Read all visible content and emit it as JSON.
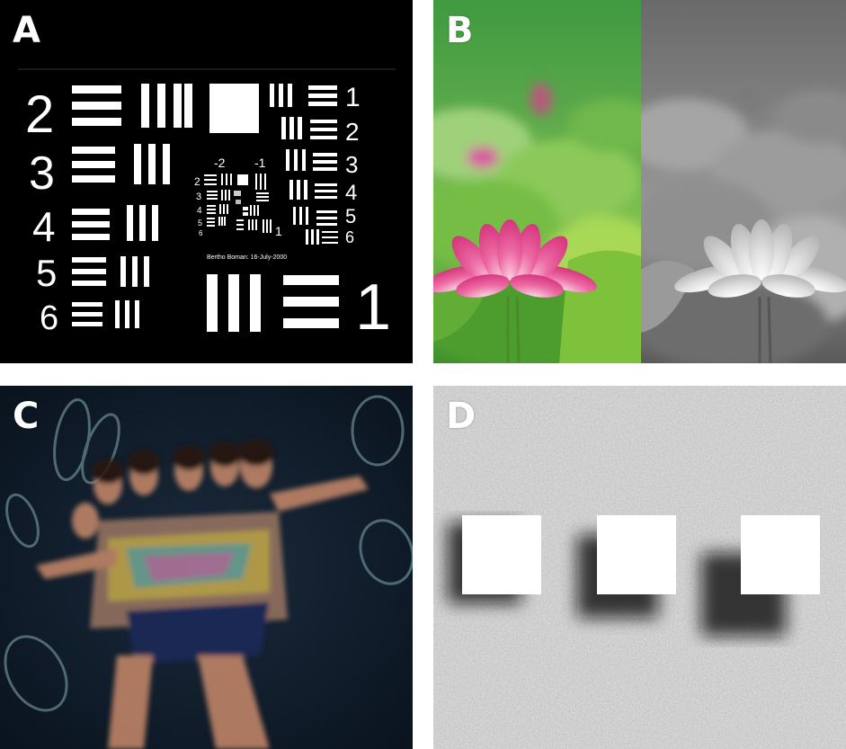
{
  "panels": {
    "a": {
      "label": "A",
      "big_numbers_left": [
        "2",
        "3",
        "4",
        "5",
        "6"
      ],
      "numbers_right": [
        "1",
        "2",
        "3",
        "4",
        "5",
        "6"
      ],
      "inner_group_labels": [
        "-2",
        "-1"
      ],
      "inner_left_numbers": [
        "2",
        "3",
        "4",
        "5",
        "6"
      ],
      "inner_right_number": "1",
      "bottom_right_number": "1",
      "credit": "Bertho Boman: 16-July-2000"
    },
    "b": {
      "label": "B"
    },
    "c": {
      "label": "C"
    },
    "d": {
      "label": "D"
    }
  },
  "colors": {
    "background": "#ffffff",
    "panel_a_bg": "#000000",
    "lotus_pink": "#e8468f",
    "leaf_green": "#4caf35",
    "panel_d_noise": "#9a9a9a"
  }
}
